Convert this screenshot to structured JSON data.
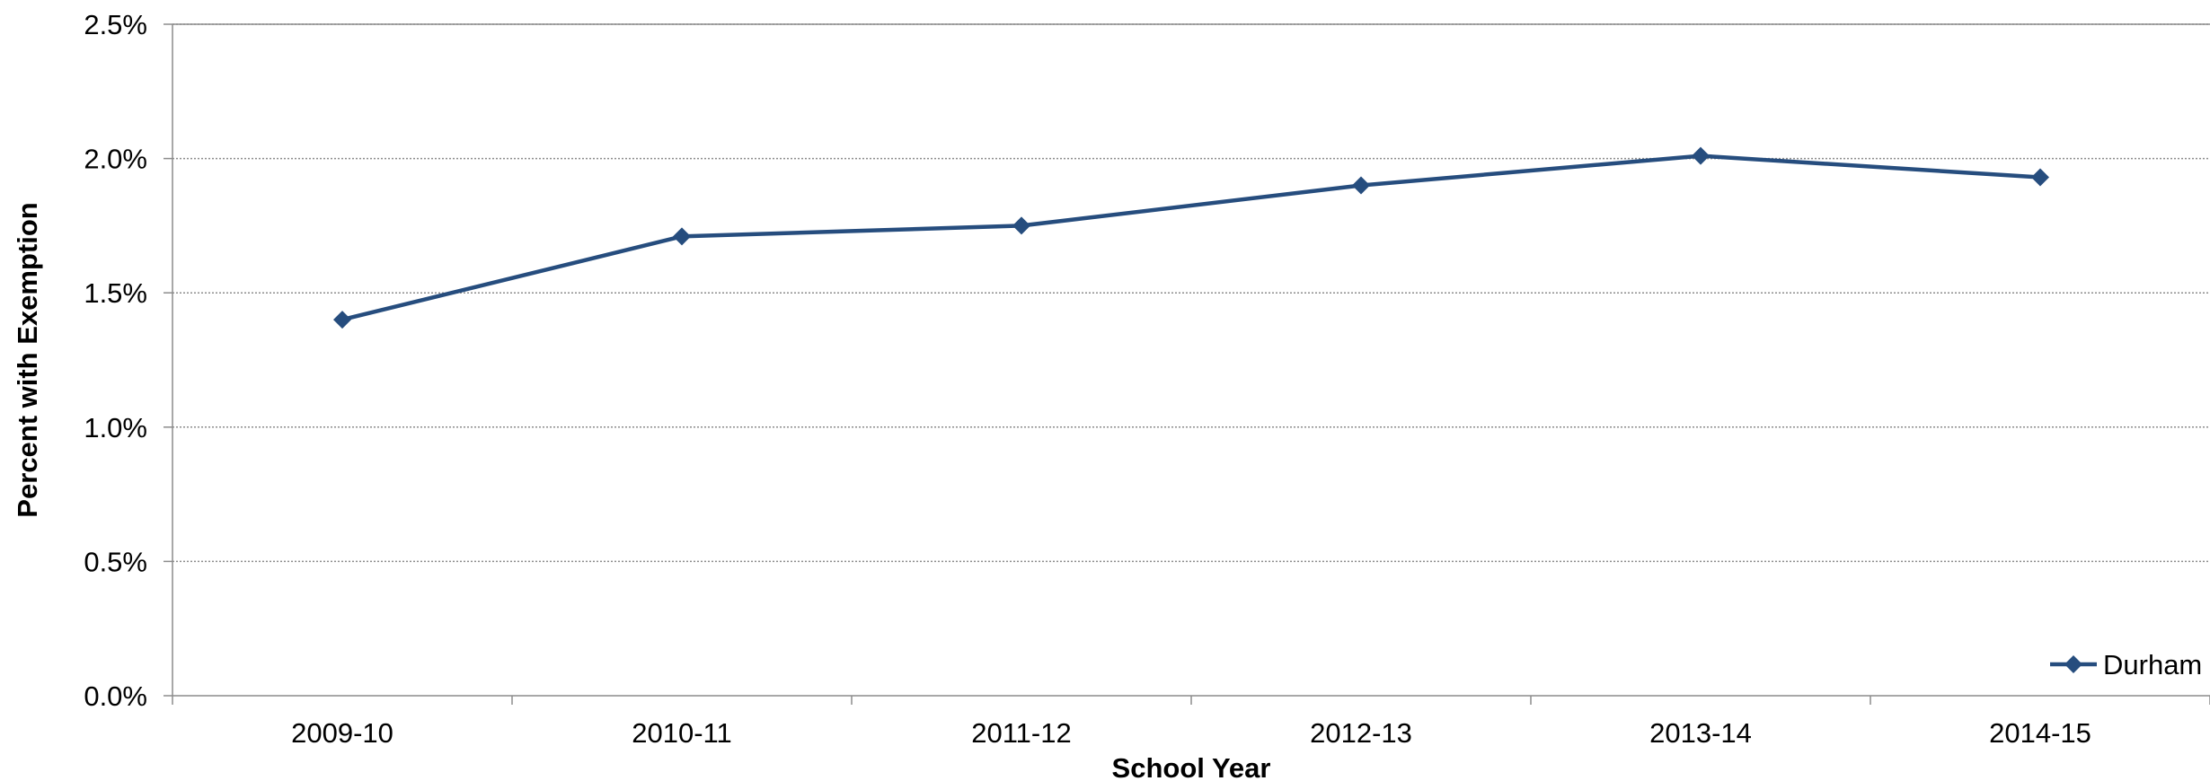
{
  "chart_data": {
    "type": "line",
    "title": "",
    "xlabel": "School Year",
    "ylabel": "Percent with Exemption",
    "categories": [
      "2009-10",
      "2010-11",
      "2011-12",
      "2012-13",
      "2013-14",
      "2014-15"
    ],
    "series": [
      {
        "name": "Durham",
        "values": [
          1.4,
          1.71,
          1.75,
          1.9,
          2.01,
          1.93
        ],
        "color": "#264D7E",
        "marker": "diamond"
      }
    ],
    "ylim": [
      0,
      2.5
    ],
    "yticks": [
      0,
      0.5,
      1.0,
      1.5,
      2.0,
      2.5
    ],
    "ytick_labels": [
      "0.0%",
      "0.5%",
      "1.0%",
      "1.5%",
      "2.0%",
      "2.5%"
    ],
    "grid": "horizontal-dotted",
    "legend_position": "bottom-right"
  }
}
